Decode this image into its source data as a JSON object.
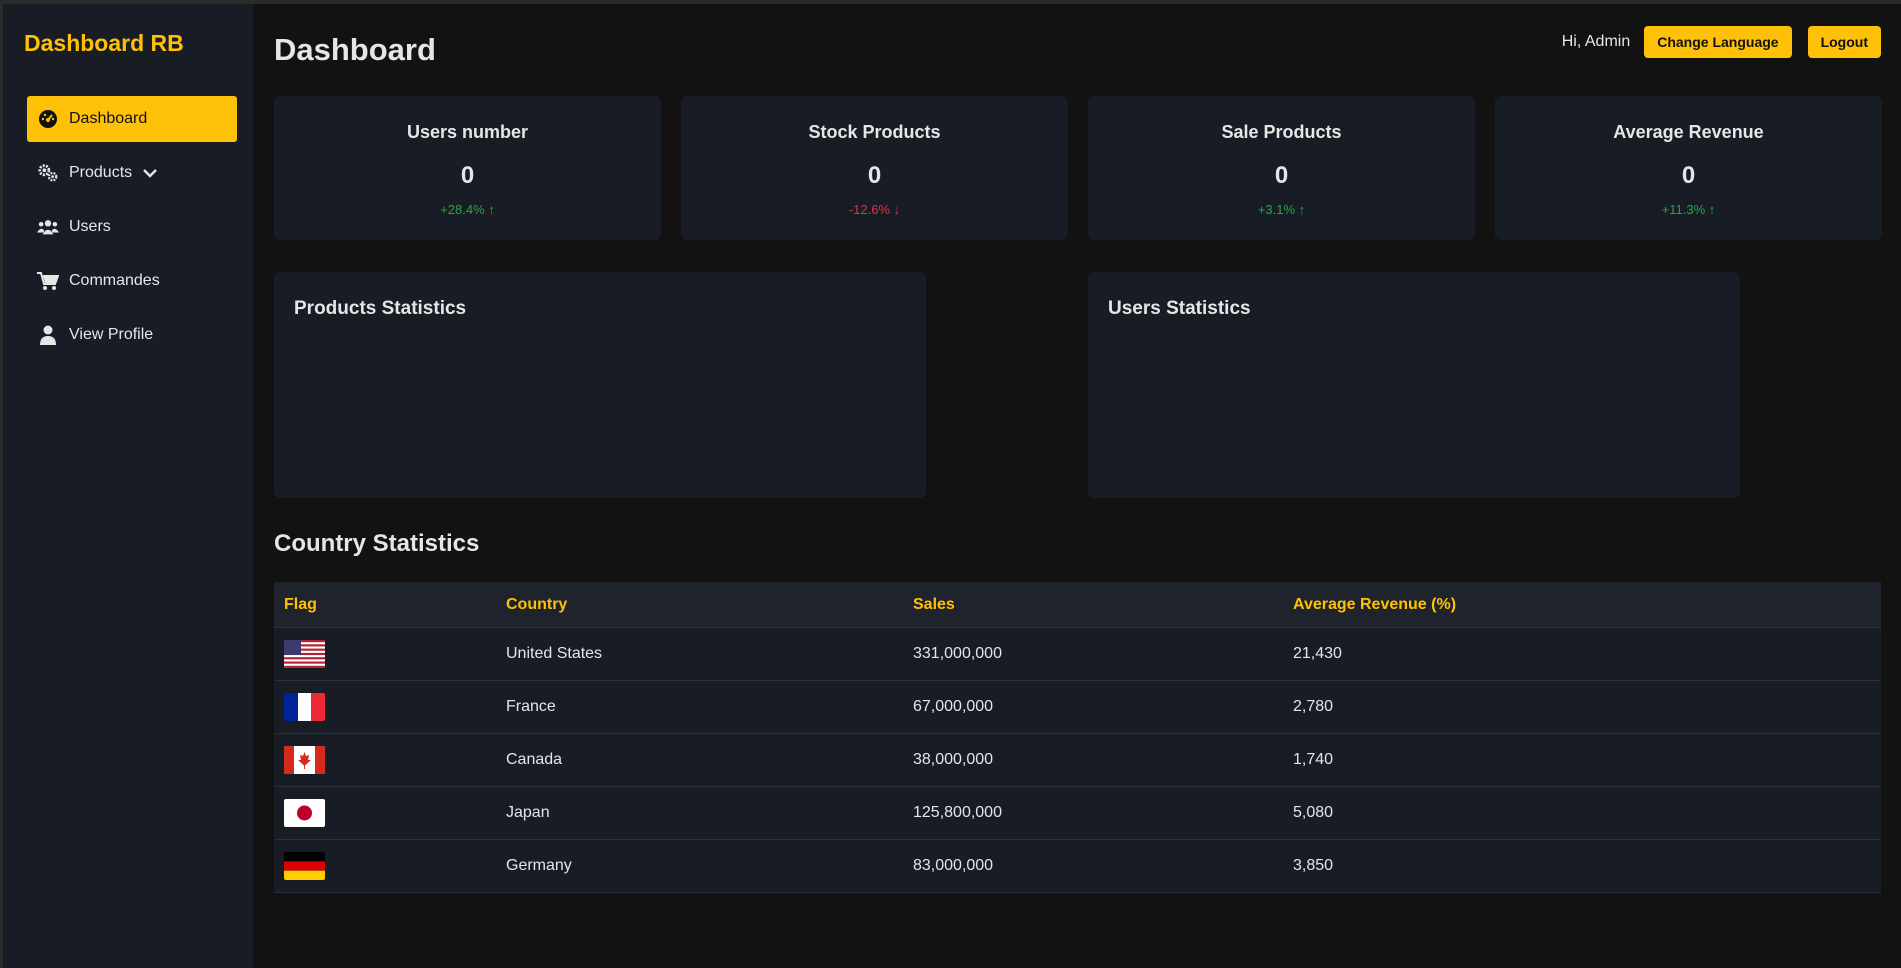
{
  "brand": "Dashboard RB",
  "sidebar": {
    "items": [
      {
        "label": "Dashboard",
        "icon": "gauge-icon"
      },
      {
        "label": "Products",
        "icon": "gears-icon"
      },
      {
        "label": "Users",
        "icon": "users-icon"
      },
      {
        "label": "Commandes",
        "icon": "cart-icon"
      },
      {
        "label": "View Profile",
        "icon": "user-icon"
      }
    ]
  },
  "header": {
    "title": "Dashboard",
    "greeting": "Hi, Admin",
    "change_language": "Change Language",
    "logout": "Logout"
  },
  "cards": [
    {
      "title": "Users number",
      "value": "0",
      "trend": "+28.4% ↑"
    },
    {
      "title": "Stock Products",
      "value": "0",
      "trend": "-12.6% ↓"
    },
    {
      "title": "Sale Products",
      "value": "0",
      "trend": "+3.1% ↑"
    },
    {
      "title": "Average Revenue",
      "value": "0",
      "trend": "+11.3% ↑"
    }
  ],
  "panels": {
    "products": "Products Statistics",
    "users": "Users Statistics"
  },
  "country_section": {
    "title": "Country Statistics",
    "columns": [
      "Flag",
      "Country",
      "Sales",
      "Average Revenue (%)"
    ],
    "rows": [
      {
        "flag": "us",
        "country": "United States",
        "sales": "331,000,000",
        "avg": "21,430"
      },
      {
        "flag": "fr",
        "country": "France",
        "sales": "67,000,000",
        "avg": "2,780"
      },
      {
        "flag": "ca",
        "country": "Canada",
        "sales": "38,000,000",
        "avg": "1,740"
      },
      {
        "flag": "jp",
        "country": "Japan",
        "sales": "125,800,000",
        "avg": "5,080"
      },
      {
        "flag": "de",
        "country": "Germany",
        "sales": "83,000,000",
        "avg": "3,850"
      }
    ]
  },
  "colors": {
    "accent": "#ffc107",
    "positive": "#28a745",
    "negative": "#dc3545"
  }
}
